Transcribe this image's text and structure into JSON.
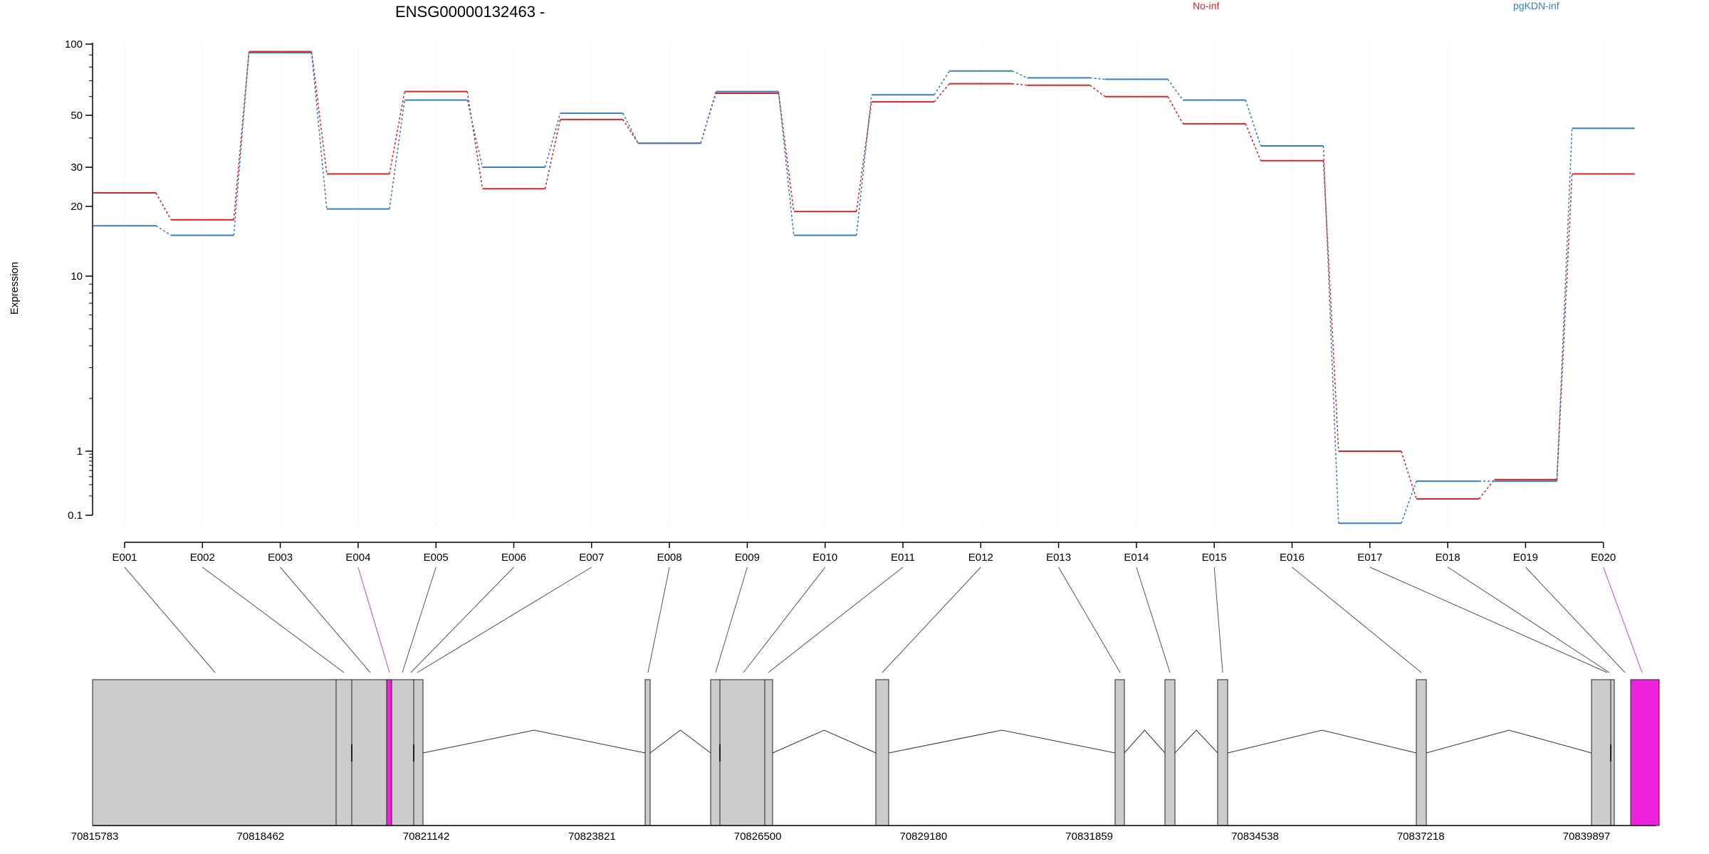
{
  "chart_data": {
    "type": "line",
    "title": "ENSG00000132463 -",
    "xlabel": "",
    "ylabel": "Expression",
    "y_scale": "log-like",
    "y_ticks": [
      {
        "value": 100,
        "label": "100"
      },
      {
        "value": 50,
        "label": "50"
      },
      {
        "value": 30,
        "label": "30"
      },
      {
        "value": 20,
        "label": "20"
      },
      {
        "value": 10,
        "label": "10"
      },
      {
        "value": 1,
        "label": "1"
      },
      {
        "value": 0.1,
        "label": "0.1"
      }
    ],
    "grid": "vertical dotted at each exon",
    "legend_placement": "top",
    "categories": [
      "E001",
      "E002",
      "E003",
      "E004",
      "E005",
      "E006",
      "E007",
      "E008",
      "E009",
      "E010",
      "E011",
      "E012",
      "E013",
      "E014",
      "E015",
      "E016",
      "E017",
      "E018",
      "E019",
      "E020"
    ],
    "series": [
      {
        "name": "No-inf",
        "color": "#d62728",
        "values": [
          23,
          17.5,
          93,
          28,
          63,
          24,
          48,
          38,
          62,
          19,
          57,
          68,
          67,
          60,
          46,
          32,
          1.0,
          0.18,
          0.36,
          28
        ]
      },
      {
        "name": "pgKDN-inf",
        "color": "#3a7dc0",
        "values": [
          16.5,
          15,
          92,
          19.5,
          58,
          30,
          51,
          38,
          63,
          15,
          61,
          77,
          72,
          71,
          58,
          37,
          0.075,
          0.34,
          0.34,
          44
        ]
      }
    ],
    "highlight_color": "#ee22dd",
    "gene_model": {
      "coordinate_ticks": [
        "70815783",
        "70818462",
        "70821142",
        "70823821",
        "70826500",
        "70829180",
        "70831859",
        "70834538",
        "70837218",
        "70839897"
      ],
      "highlighted_exons": [
        "E004",
        "E020"
      ]
    }
  }
}
